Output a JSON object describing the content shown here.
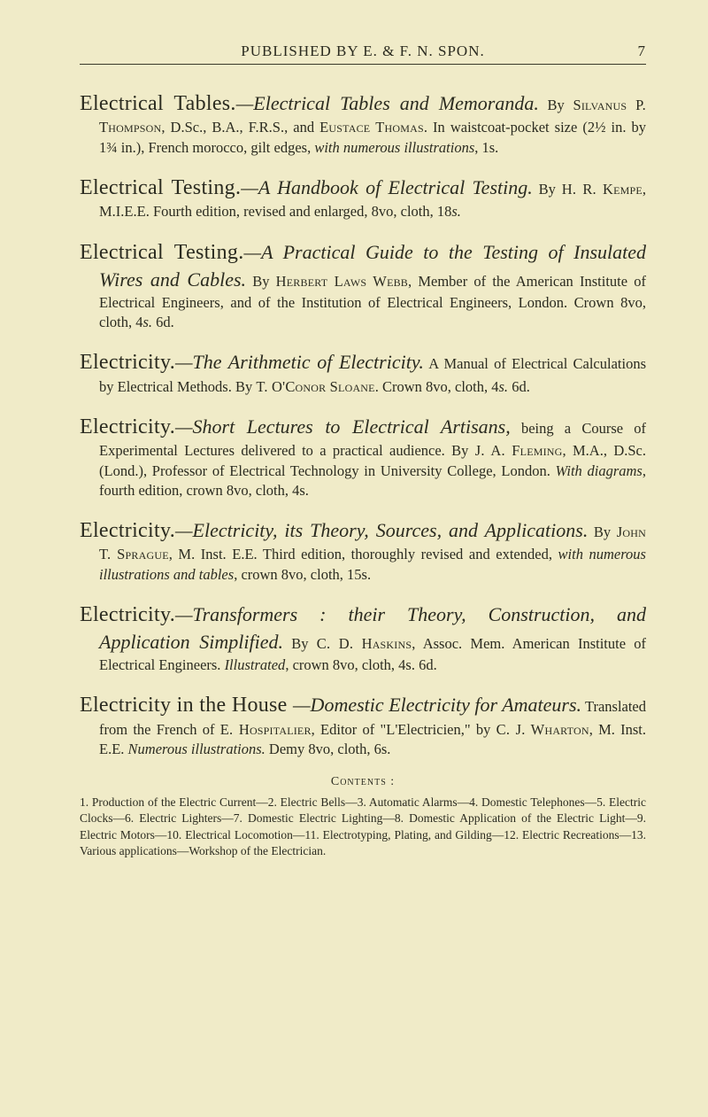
{
  "page": {
    "running_head": "PUBLISHED BY E. & F. N. SPON.",
    "number": "7"
  },
  "entries": [
    {
      "headword": "Electrical Tables.",
      "subtitle": "—Electrical Tables and Memoranda.",
      "body_pre": "By ",
      "sc1": "Silvanus P. Thompson",
      "body_mid1": ", D.Sc., B.A., F.R.S., and ",
      "sc2": "Eustace Thomas",
      "body_mid2": ". In waistcoat-pocket size (2½ in. by 1¾ in.), French morocco, gilt edges, ",
      "it1": "with numerous illustrations",
      "body_end": ", 1s."
    },
    {
      "headword": "Electrical Testing.",
      "subtitle": "—A Handbook of Electrical Testing.",
      "body_pre": "By ",
      "sc1": "H. R. Kempe",
      "body_mid1": ", M.I.E.E. Fourth edition, revised and enlarged, 8vo, cloth, 18",
      "it1": "s.",
      "body_end": ""
    },
    {
      "headword": "Electrical Testing.",
      "subtitle": "—A Practical Guide to the Testing of Insulated Wires and Cables.",
      "body_pre": "By ",
      "sc1": "Herbert Laws Webb",
      "body_mid1": ", Member of the American Institute of Electrical Engineers, and of the Institution of Electrical Engineers, London. Crown 8vo, cloth, 4",
      "it1": "s.",
      "body_end": " 6d."
    },
    {
      "headword": "Electricity.",
      "subtitle": "—The Arithmetic of Electricity.",
      "body_pre": "A Manual of Electrical Calculations by Electrical Methods. By ",
      "sc1": "T. O'Conor Sloane",
      "body_mid1": ". Crown 8vo, cloth, 4",
      "it1": "s.",
      "body_end": " 6d."
    },
    {
      "headword": "Electricity.",
      "subtitle": "—Short Lectures to Electrical Artisans,",
      "body_pre": "being a Course of Experimental Lectures delivered to a practical audience. By ",
      "sc1": "J. A. Fleming",
      "body_mid1": ", M.A., D.Sc. (Lond.), Professor of Electrical Technology in University College, London. ",
      "it1": "With diagrams",
      "body_end": ", fourth edition, crown 8vo, cloth, 4s."
    },
    {
      "headword": "Electricity.",
      "subtitle": "—Electricity, its Theory, Sources, and Applications.",
      "body_pre": "By ",
      "sc1": "John T. Sprague",
      "body_mid1": ", M. Inst. E.E. Third edition, thoroughly revised and extended, ",
      "it1": "with numerous illustrations and tables",
      "body_end": ", crown 8vo, cloth, 15s."
    },
    {
      "headword": "Electricity.",
      "subtitle": "—Transformers : their Theory, Construction, and Application Simplified.",
      "body_pre": "By ",
      "sc1": "C. D. Haskins",
      "body_mid1": ", Assoc. Mem. American Institute of Electrical Engineers. ",
      "it1": "Illustrated",
      "body_end": ", crown 8vo, cloth, 4s. 6d."
    },
    {
      "headword": "Electricity in the House ",
      "subtitle": "—Domestic Electricity for Amateurs.",
      "body_pre": "Translated from the French of ",
      "sc1": "E. Hospitalier",
      "body_mid1": ", Editor of \"L'Electricien,\" by ",
      "sc2": "C. J. Wharton",
      "body_mid2": ", M. Inst. E.E. ",
      "it1": "Numerous illustrations.",
      "body_end": " Demy 8vo, cloth, 6s."
    }
  ],
  "contents": {
    "label": "Contents :",
    "body": "1. Production of the Electric Current—2. Electric Bells—3. Automatic Alarms—4. Domestic Telephones—5. Electric Clocks—6. Electric Lighters—7. Domestic Electric Lighting—8. Domestic Application of the Electric Light—9. Electric Motors—10. Electrical Locomotion—11. Electrotyping, Plating, and Gilding—12. Electric Recreations—13. Various applications—Workshop of the Electrician."
  }
}
